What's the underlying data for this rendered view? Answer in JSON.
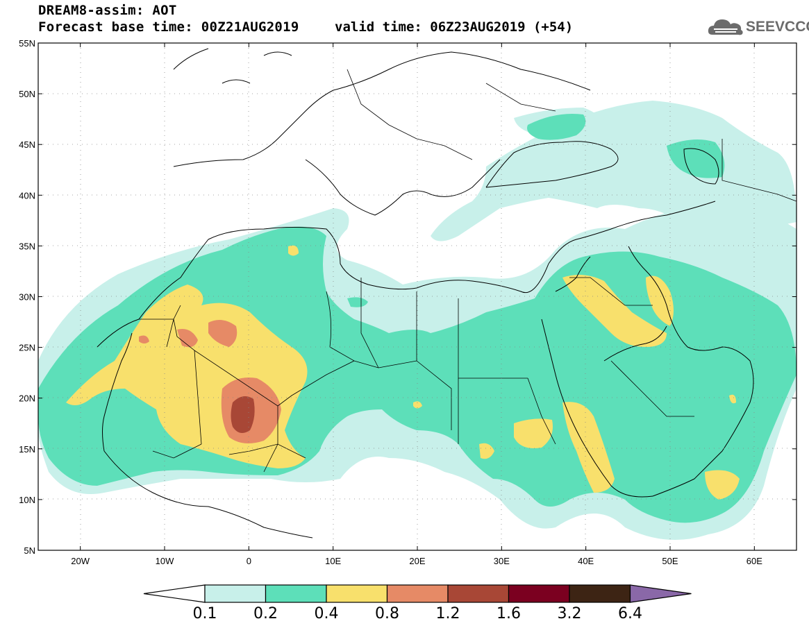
{
  "header": {
    "title": "DREAM8-assim: AOT",
    "base_time": "Forecast base time: 00Z21AUG2019",
    "valid_time": "valid time: 06Z23AUG2019 (+54)"
  },
  "logo": {
    "text": "SEEVCCC",
    "icon": "cloud-icon"
  },
  "map": {
    "lon_range": [
      -25,
      65
    ],
    "lat_range": [
      5,
      55
    ],
    "lat_ticks": [
      "5N",
      "10N",
      "15N",
      "20N",
      "25N",
      "30N",
      "35N",
      "40N",
      "45N",
      "50N",
      "55N"
    ],
    "lon_ticks": [
      "20W",
      "10W",
      "0",
      "10E",
      "20E",
      "30E",
      "40E",
      "50E",
      "60E"
    ],
    "gridlines": "dotted"
  },
  "colorbar": {
    "levels": [
      "0.1",
      "0.2",
      "0.4",
      "0.8",
      "1.2",
      "1.6",
      "3.2",
      "6.4"
    ],
    "colors": [
      "#ffffff",
      "#c8f0ea",
      "#5ddfb9",
      "#f8e06c",
      "#e68a66",
      "#a84736",
      "#7b0020",
      "#3d2414",
      "#8a68a8"
    ]
  },
  "aot_field_colors": {
    "0.1-0.2": "#c8f0ea",
    "0.2-0.4": "#5ddfb9",
    "0.4-0.8": "#f8e06c",
    "0.8-1.2": "#e68a66",
    "1.2-1.6": "#a84736"
  }
}
